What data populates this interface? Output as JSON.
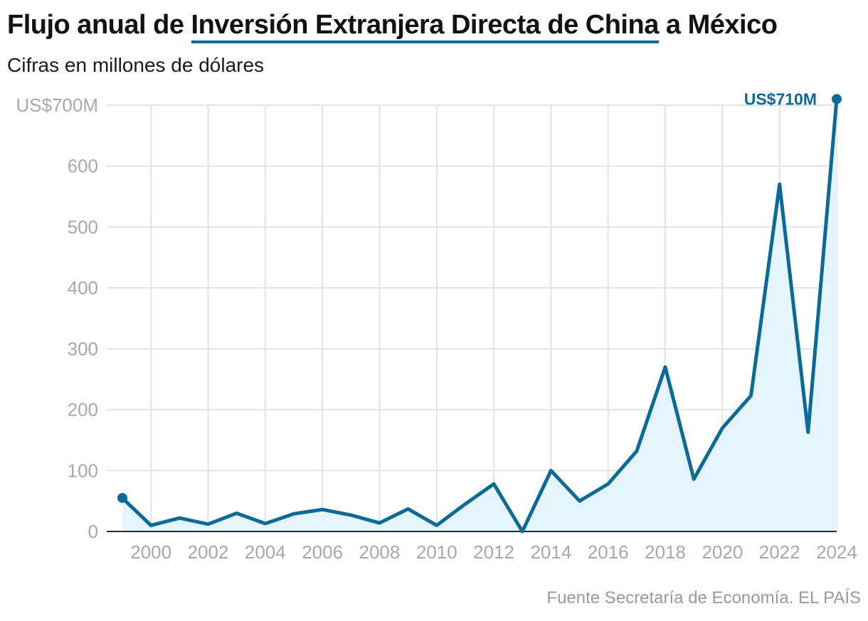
{
  "header": {
    "title_pre": "Flujo anual de ",
    "title_highlight": "Inversión Extranjera Directa de China",
    "title_post": " a México",
    "subtitle": "Cifras en millones de dólares"
  },
  "footer": {
    "source": "Fuente Secretaría de Economía. EL PAÍS"
  },
  "colors": {
    "line": "#0b6a96",
    "area": "#e6f5fd",
    "grid": "#e3e3e3",
    "axis": "#2a2a2a",
    "tick_text": "#a8a8a8"
  },
  "chart_data": {
    "type": "line",
    "title": "Flujo anual de Inversión Extranjera Directa de China a México",
    "subtitle": "Cifras en millones de dólares",
    "x": [
      1999,
      2000,
      2001,
      2002,
      2003,
      2004,
      2005,
      2006,
      2007,
      2008,
      2009,
      2010,
      2011,
      2012,
      2013,
      2014,
      2015,
      2016,
      2017,
      2018,
      2019,
      2020,
      2021,
      2022,
      2023,
      2024
    ],
    "series": [
      {
        "values": [
          55,
          10,
          22,
          12,
          30,
          13,
          29,
          36,
          27,
          14,
          37,
          10,
          45,
          78,
          0,
          100,
          50,
          78,
          132,
          270,
          86,
          170,
          223,
          570,
          163,
          710
        ]
      }
    ],
    "xlim": [
      1999,
      2024
    ],
    "ylim": [
      0,
      700
    ],
    "x_ticks": [
      2000,
      2002,
      2004,
      2006,
      2008,
      2010,
      2012,
      2014,
      2016,
      2018,
      2020,
      2022,
      2024
    ],
    "y_ticks": [
      {
        "value": 0,
        "label": "0"
      },
      {
        "value": 100,
        "label": "100"
      },
      {
        "value": 200,
        "label": "200"
      },
      {
        "value": 300,
        "label": "300"
      },
      {
        "value": 400,
        "label": "400"
      },
      {
        "value": 500,
        "label": "500"
      },
      {
        "value": 600,
        "label": "600"
      },
      {
        "value": 700,
        "label": "US$700M"
      }
    ],
    "annotations": [
      {
        "x": 2024,
        "y": 710,
        "label": "US$710M"
      }
    ],
    "markers_at": [
      1999,
      2024
    ],
    "grid": true,
    "area_fill": true
  }
}
